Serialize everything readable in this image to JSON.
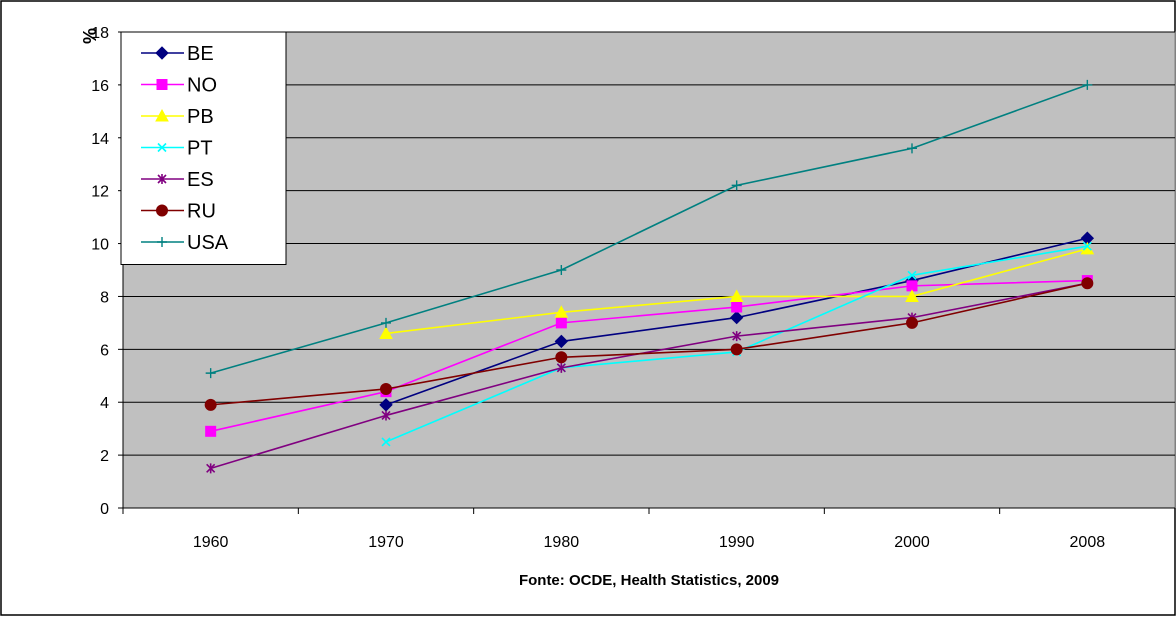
{
  "chart_data": {
    "type": "line",
    "title": "",
    "ylabel": "%",
    "xlabel": "Fonte: OCDE, Health Statistics, 2009",
    "ylim": [
      0,
      18
    ],
    "y_ticks": [
      "0",
      "2",
      "4",
      "6",
      "8",
      "10",
      "12",
      "14",
      "16",
      "18"
    ],
    "categories": [
      "1960",
      "1970",
      "1980",
      "1990",
      "2000",
      "2008"
    ],
    "grid": true,
    "legend_position": "top-left",
    "plot_background": "#c0c0c0",
    "series": [
      {
        "name": "BE",
        "color": "#000080",
        "marker": "diamond",
        "values": [
          null,
          3.9,
          6.3,
          7.2,
          8.6,
          10.2
        ]
      },
      {
        "name": "NO",
        "color": "#ff00ff",
        "marker": "square",
        "values": [
          2.9,
          4.4,
          7.0,
          7.6,
          8.4,
          8.6
        ]
      },
      {
        "name": "PB",
        "color": "#ffff00",
        "marker": "triangle",
        "values": [
          null,
          6.6,
          7.4,
          8.0,
          8.0,
          9.8
        ]
      },
      {
        "name": "PT",
        "color": "#00ffff",
        "marker": "x",
        "values": [
          null,
          2.5,
          5.3,
          5.9,
          8.8,
          9.9
        ]
      },
      {
        "name": "ES",
        "color": "#800080",
        "marker": "star",
        "values": [
          1.5,
          3.5,
          5.3,
          6.5,
          7.2,
          8.5
        ]
      },
      {
        "name": "RU",
        "color": "#800000",
        "marker": "circle",
        "values": [
          3.9,
          4.5,
          5.7,
          6.0,
          7.0,
          8.5
        ]
      },
      {
        "name": "USA",
        "color": "#008080",
        "marker": "plus",
        "values": [
          5.1,
          7.0,
          9.0,
          12.2,
          13.6,
          16.0
        ]
      }
    ]
  }
}
